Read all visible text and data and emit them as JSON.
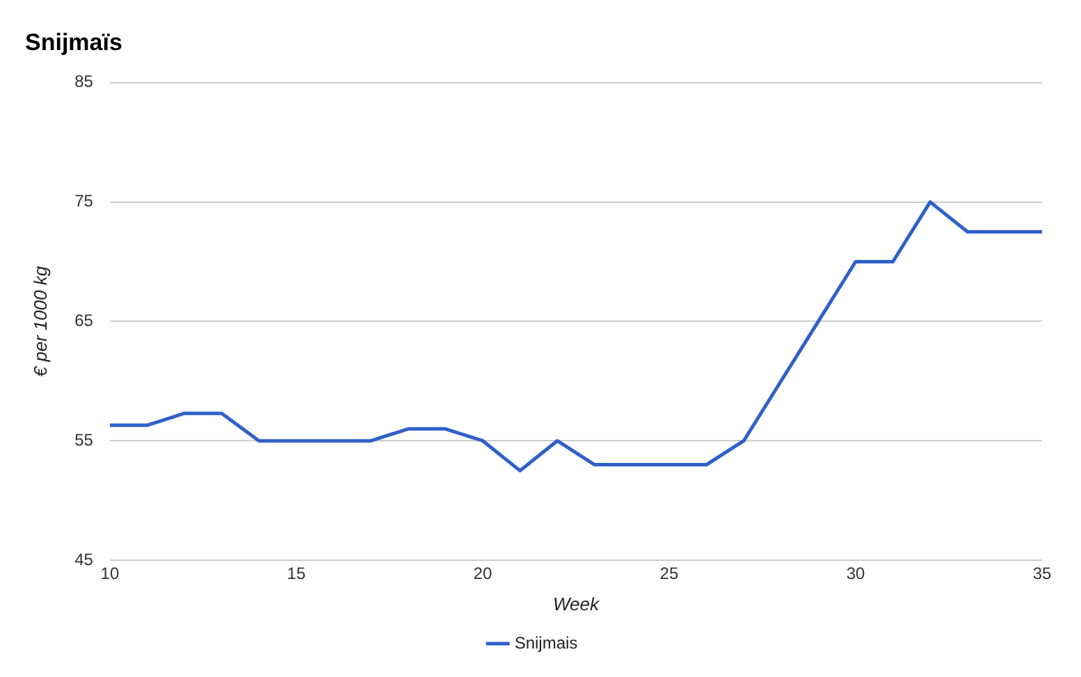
{
  "chart_data": {
    "type": "line",
    "title": "Snijmaïs",
    "xlabel": "Week",
    "ylabel": "€ per 1000 kg",
    "x": [
      10,
      11,
      12,
      13,
      14,
      15,
      16,
      17,
      18,
      19,
      20,
      21,
      22,
      23,
      24,
      25,
      26,
      27,
      28,
      29,
      30,
      31,
      32,
      33,
      34,
      35
    ],
    "series": [
      {
        "name": "Snijmais",
        "color": "#3060c8",
        "values": [
          56.3,
          56.3,
          57.3,
          57.3,
          55,
          55,
          55,
          55,
          56,
          56,
          55,
          52.5,
          55,
          53,
          53,
          53,
          53,
          55,
          60,
          65,
          70,
          70,
          75,
          72.5,
          72.5,
          72.5
        ]
      }
    ],
    "xlim": [
      10,
      35
    ],
    "xticks": [
      10,
      15,
      20,
      25,
      30,
      35
    ],
    "ylim": [
      45,
      85
    ],
    "yticks": [
      45,
      55,
      65,
      75,
      85
    ],
    "grid": "y",
    "legend": "bottom",
    "marker": "none",
    "line_style": "solid"
  }
}
